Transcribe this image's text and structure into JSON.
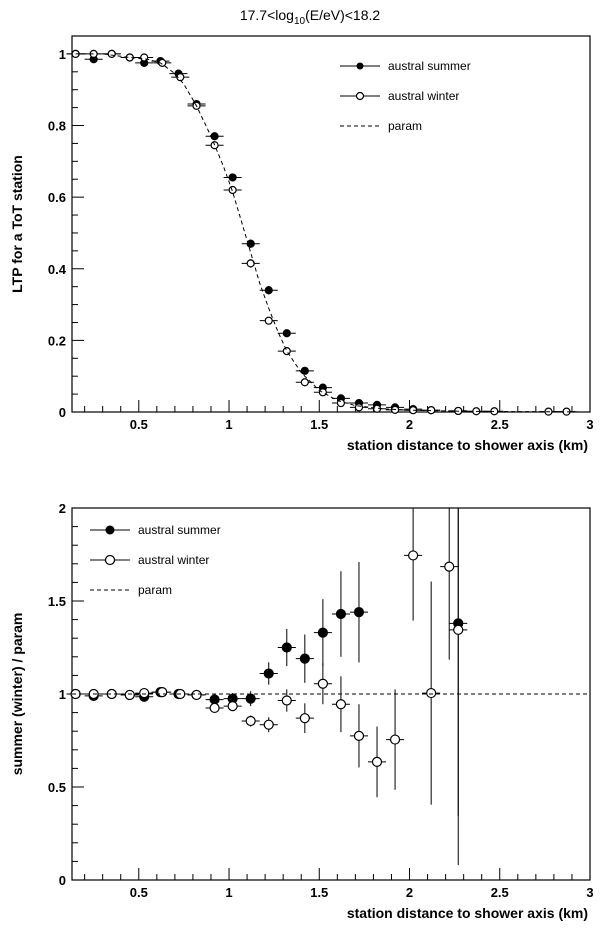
{
  "title": {
    "prefix": "17.7<log",
    "sub": "10",
    "suffix": "(E/eV)<18.2"
  },
  "chart_data": [
    {
      "type": "scatter",
      "ylabel": "LTP for a ToT station",
      "xlabel": "station distance to shower axis (km)",
      "xlim": [
        0.13,
        3.0
      ],
      "ylim": [
        0,
        1.05
      ],
      "xticks": [
        0.5,
        1,
        1.5,
        2,
        2.5,
        3
      ],
      "xtick_labels": [
        "0.5",
        "1",
        "1.5",
        "2",
        "2.5",
        "3"
      ],
      "yticks": [
        0,
        0.2,
        0.4,
        0.6,
        0.8,
        1
      ],
      "ytick_labels": [
        "0",
        "0.2",
        "0.4",
        "0.6",
        "0.8",
        "1"
      ],
      "legend_position": "top-right",
      "series": [
        {
          "name": "austral summer",
          "marker": "filled-circle",
          "xerr": 0.05,
          "points": [
            [
              0.15,
              1.0,
              0.005
            ],
            [
              0.25,
              0.985,
              0.005
            ],
            [
              0.35,
              1.0,
              0.005
            ],
            [
              0.45,
              0.99,
              0.005
            ],
            [
              0.53,
              0.975,
              0.005
            ],
            [
              0.62,
              0.98,
              0.005
            ],
            [
              0.72,
              0.945,
              0.005
            ],
            [
              0.82,
              0.86,
              0.008
            ],
            [
              0.92,
              0.77,
              0.01
            ],
            [
              1.02,
              0.655,
              0.01
            ],
            [
              1.12,
              0.47,
              0.012
            ],
            [
              1.22,
              0.34,
              0.012
            ],
            [
              1.32,
              0.22,
              0.01
            ],
            [
              1.42,
              0.115,
              0.008
            ],
            [
              1.52,
              0.068,
              0.006
            ],
            [
              1.62,
              0.038,
              0.005
            ],
            [
              1.72,
              0.025,
              0.004
            ],
            [
              1.82,
              0.02,
              0.003
            ],
            [
              1.92,
              0.013,
              0.003
            ],
            [
              2.02,
              0.008,
              0.002
            ],
            [
              2.12,
              0.005,
              0.002
            ],
            [
              2.27,
              0.003,
              0.002
            ]
          ]
        },
        {
          "name": "austral winter",
          "marker": "open-circle",
          "xerr": 0.05,
          "points": [
            [
              0.15,
              1.0,
              0.005
            ],
            [
              0.25,
              1.0,
              0.005
            ],
            [
              0.35,
              1.0,
              0.005
            ],
            [
              0.45,
              0.99,
              0.005
            ],
            [
              0.53,
              0.99,
              0.005
            ],
            [
              0.63,
              0.975,
              0.005
            ],
            [
              0.73,
              0.935,
              0.005
            ],
            [
              0.82,
              0.855,
              0.008
            ],
            [
              0.92,
              0.745,
              0.01
            ],
            [
              1.02,
              0.62,
              0.01
            ],
            [
              1.12,
              0.415,
              0.012
            ],
            [
              1.22,
              0.255,
              0.01
            ],
            [
              1.32,
              0.17,
              0.008
            ],
            [
              1.42,
              0.083,
              0.006
            ],
            [
              1.52,
              0.055,
              0.005
            ],
            [
              1.62,
              0.025,
              0.004
            ],
            [
              1.72,
              0.013,
              0.003
            ],
            [
              1.82,
              0.009,
              0.002
            ],
            [
              1.92,
              0.006,
              0.002
            ],
            [
              2.02,
              0.005,
              0.002
            ],
            [
              2.12,
              0.005,
              0.002
            ],
            [
              2.27,
              0.003,
              0.002
            ],
            [
              2.37,
              0.002,
              0.001
            ],
            [
              2.47,
              0.002,
              0.001
            ],
            [
              2.77,
              0.001,
              0.001
            ],
            [
              2.87,
              0.001,
              0.001
            ]
          ]
        },
        {
          "name": "param",
          "style": "dashed",
          "x": [
            0.15,
            0.3,
            0.45,
            0.55,
            0.62,
            0.7,
            0.75,
            0.82,
            0.9,
            0.97,
            1.02,
            1.07,
            1.12,
            1.17,
            1.22,
            1.27,
            1.32,
            1.4,
            1.5,
            1.6,
            1.7,
            1.85,
            2.0,
            2.3,
            2.6,
            3.0
          ],
          "y": [
            1.0,
            1.0,
            0.99,
            0.985,
            0.975,
            0.945,
            0.915,
            0.855,
            0.77,
            0.685,
            0.615,
            0.53,
            0.445,
            0.36,
            0.29,
            0.225,
            0.17,
            0.11,
            0.06,
            0.032,
            0.018,
            0.009,
            0.005,
            0.002,
            0.001,
            0.0
          ]
        }
      ]
    },
    {
      "type": "scatter",
      "ylabel": "summer (winter) / param",
      "xlabel": "station distance to shower axis (km)",
      "xlim": [
        0.13,
        3.0
      ],
      "ylim": [
        0,
        2
      ],
      "xticks": [
        0.5,
        1,
        1.5,
        2,
        2.5,
        3
      ],
      "xtick_labels": [
        "0.5",
        "1",
        "1.5",
        "2",
        "2.5",
        "3"
      ],
      "yticks": [
        0,
        0.5,
        1,
        1.5,
        2
      ],
      "ytick_labels": [
        "0",
        "0.5",
        "1",
        "1.5",
        "2"
      ],
      "legend_position": "top-left",
      "series": [
        {
          "name": "austral summer",
          "marker": "filled-circle",
          "xerr": 0.05,
          "points": [
            [
              0.15,
              1.0,
              0.01
            ],
            [
              0.25,
              0.99,
              0.01
            ],
            [
              0.35,
              1.0,
              0.01
            ],
            [
              0.45,
              0.995,
              0.01
            ],
            [
              0.53,
              0.985,
              0.01
            ],
            [
              0.62,
              1.01,
              0.01
            ],
            [
              0.72,
              1.0,
              0.01
            ],
            [
              0.82,
              0.995,
              0.01
            ],
            [
              0.92,
              0.97,
              0.02
            ],
            [
              1.02,
              0.975,
              0.03
            ],
            [
              1.12,
              0.975,
              0.04
            ],
            [
              1.22,
              1.11,
              0.06
            ],
            [
              1.32,
              1.25,
              0.1
            ],
            [
              1.42,
              1.19,
              0.13
            ],
            [
              1.52,
              1.33,
              0.18
            ],
            [
              1.62,
              1.43,
              0.23
            ],
            [
              1.72,
              1.44,
              0.27
            ],
            [
              2.27,
              1.38,
              1.3
            ]
          ]
        },
        {
          "name": "austral winter",
          "marker": "open-circle",
          "xerr": 0.05,
          "points": [
            [
              0.15,
              1.0,
              0.01
            ],
            [
              0.25,
              1.0,
              0.01
            ],
            [
              0.35,
              1.0,
              0.01
            ],
            [
              0.45,
              0.995,
              0.01
            ],
            [
              0.53,
              1.005,
              0.01
            ],
            [
              0.63,
              1.01,
              0.01
            ],
            [
              0.73,
              1.0,
              0.01
            ],
            [
              0.82,
              0.995,
              0.01
            ],
            [
              0.92,
              0.925,
              0.02
            ],
            [
              1.02,
              0.935,
              0.02
            ],
            [
              1.12,
              0.855,
              0.03
            ],
            [
              1.22,
              0.835,
              0.04
            ],
            [
              1.32,
              0.965,
              0.06
            ],
            [
              1.42,
              0.87,
              0.08
            ],
            [
              1.52,
              1.055,
              0.11
            ],
            [
              1.62,
              0.945,
              0.15
            ],
            [
              1.72,
              0.775,
              0.17
            ],
            [
              1.82,
              0.635,
              0.19
            ],
            [
              1.92,
              0.755,
              0.27
            ],
            [
              2.02,
              1.745,
              0.35
            ],
            [
              2.12,
              1.005,
              0.6
            ],
            [
              2.22,
              1.685,
              0.5
            ],
            [
              2.27,
              1.345,
              1.0
            ]
          ]
        },
        {
          "name": "param",
          "style": "dashed",
          "x": [
            0.13,
            3.0
          ],
          "y": [
            1.0,
            1.0
          ]
        }
      ]
    }
  ]
}
